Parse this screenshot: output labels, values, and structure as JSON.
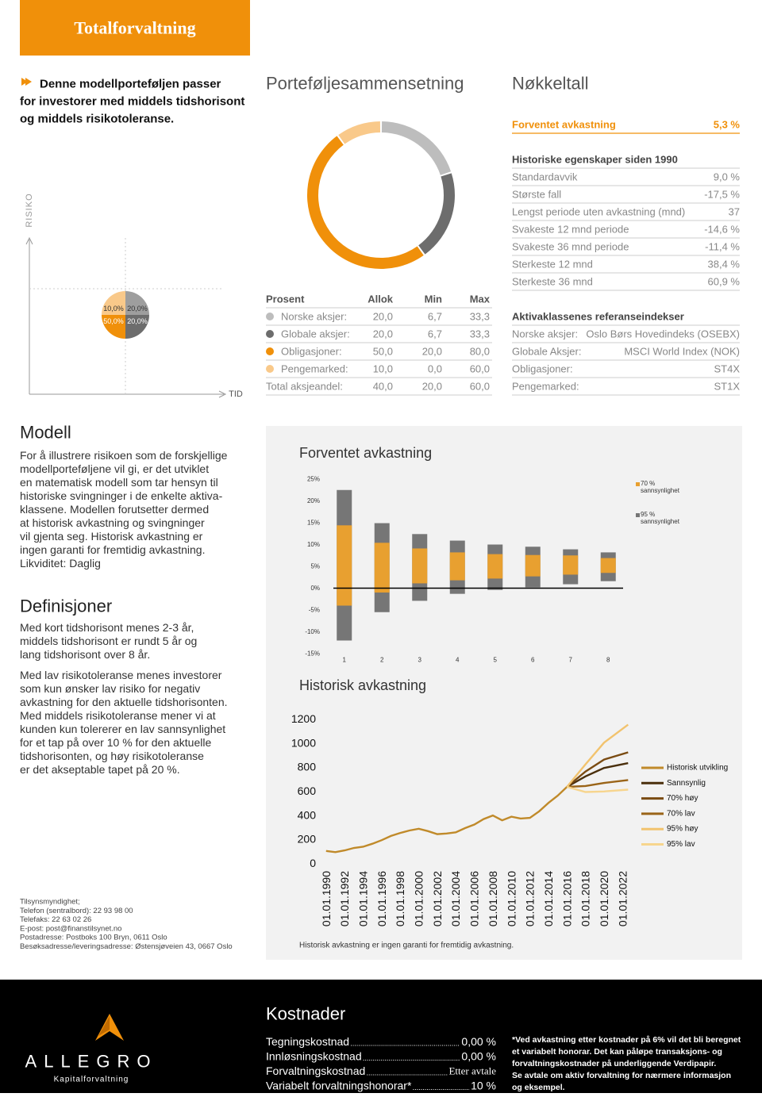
{
  "header": {
    "title": "Totalforvaltning"
  },
  "intro": {
    "lines": [
      "Denne modellporteføljen passer",
      "for investorer med middels tidshorisont",
      "og middels risikotoleranse."
    ]
  },
  "risk_chart": {
    "y_label": "RISIKO",
    "x_label": "TID",
    "pie_labels": [
      "10,0%",
      "20,0%",
      "50,0%",
      "20,0%"
    ],
    "pie_colors": [
      "#f9c98a",
      "#9e9e9e",
      "#f0900a",
      "#6d6d6d"
    ]
  },
  "composition": {
    "title": "Porteføljesammensetning",
    "donut": {
      "values": [
        20,
        20,
        50,
        10
      ],
      "colors": [
        "#bdbdbd",
        "#6d6d6d",
        "#f0900a",
        "#f9c98a"
      ]
    },
    "table": {
      "header": [
        "Prosent",
        "Allok",
        "Min",
        "Max"
      ],
      "rows": [
        [
          "Norske aksjer:",
          "20,0",
          "6,7",
          "33,3"
        ],
        [
          "Globale aksjer:",
          "20,0",
          "6,7",
          "33,3"
        ],
        [
          "Obligasjoner:",
          "50,0",
          "20,0",
          "80,0"
        ],
        [
          "Pengemarked:",
          "10,0",
          "0,0",
          "60,0"
        ],
        [
          "Total aksjeandel:",
          "40,0",
          "20,0",
          "60,0"
        ]
      ]
    }
  },
  "key_figures": {
    "title": "Nøkkeltall",
    "expected": {
      "label": "Forventet avkastning",
      "value": "5,3 %"
    },
    "historical": {
      "title": "Historiske egenskaper siden 1990",
      "rows": [
        [
          "Standardavvik",
          "9,0 %"
        ],
        [
          "Største fall",
          "-17,5 %"
        ],
        [
          "Lengst periode uten avkastning (mnd)",
          "37"
        ],
        [
          "Svakeste 12 mnd periode",
          "-14,6 %"
        ],
        [
          "Svakeste 36 mnd periode",
          "-11,4 %"
        ],
        [
          "Sterkeste 12 mnd",
          "38,4 %"
        ],
        [
          "Sterkeste 36 mnd",
          "60,9 %"
        ]
      ]
    },
    "benchmarks": {
      "title": "Aktivaklassenes referanseindekser",
      "rows": [
        [
          "Norske aksjer:",
          "Oslo Børs Hovedindeks (OSEBX)"
        ],
        [
          "Globale Aksjer:",
          "MSCI World Index (NOK)"
        ],
        [
          "Obligasjoner:",
          "ST4X"
        ],
        [
          "Pengemarked:",
          "ST1X"
        ]
      ]
    }
  },
  "modell": {
    "title": "Modell",
    "lines": [
      "For å illustrere risikoen som de forskjellige",
      "modellporteføljene vil gi, er det utviklet",
      "en matematisk modell som tar hensyn til",
      "historiske svingninger i de enkelte aktiva-",
      "klassene. Modellen forutsetter dermed",
      "at historisk avkastning og svingninger",
      "vil gjenta seg. Historisk avkastning er",
      "ingen garanti for fremtidig avkastning.",
      "Likviditet: Daglig"
    ]
  },
  "definisjoner": {
    "title": "Definisjoner",
    "paragraphs": [
      [
        "Med kort tidshorisont menes 2-3 år,",
        "middels tidshorisont er rundt 5 år og",
        "lang tidshorisont over 8 år."
      ],
      [
        "Med lav risikotoleranse menes investorer",
        "som kun ønsker lav risiko for negativ",
        "avkastning for den aktuelle tidshorisonten.",
        "Med middels risikotoleranse mener vi at",
        "kunden kun tolererer en lav sannsynlighet",
        "for et tap på over 10 % for den aktuelle",
        "tidshorisonten, og høy risikotoleranse",
        "er det akseptable tapet på 20 %."
      ]
    ]
  },
  "contact": {
    "lines": [
      "Tilsynsmyndighet;",
      "Telefon (sentralbord): 22 93 98 00",
      "Telefaks: 22 63 02 26",
      "E-post: post@finanstilsynet.no",
      "Postadresse: Postboks 100 Bryn, 0611 Oslo",
      "Besøksadresse/leveringsadresse: Østensjøveien 43, 0667 Oslo"
    ]
  },
  "chart_data": [
    {
      "type": "range_bar",
      "title": "Forventet avkastning",
      "categories": [
        "1",
        "2",
        "3",
        "4",
        "5",
        "6",
        "7",
        "8"
      ],
      "ylim": [
        -15,
        25
      ],
      "yticks": [
        {
          "value": -15,
          "label": "-15%"
        },
        {
          "value": -10,
          "label": "-10%"
        },
        {
          "value": -5,
          "label": "-5%"
        },
        {
          "value": 0,
          "label": "0%"
        },
        {
          "value": 5,
          "label": "5%"
        },
        {
          "value": 10,
          "label": "10%"
        },
        {
          "value": 15,
          "label": "15%"
        },
        {
          "value": 20,
          "label": "20%"
        },
        {
          "value": 25,
          "label": "25%"
        }
      ],
      "series": [
        {
          "name": "70 % sannsynlighet",
          "color": "#e8a030",
          "low": [
            -4,
            -1,
            1.1,
            1.8,
            2.2,
            2.7,
            3.1,
            3.5
          ],
          "high": [
            14.4,
            10.4,
            9.1,
            8.2,
            7.8,
            7.6,
            7.5,
            6.9
          ]
        },
        {
          "name": "95 % sannsynlighet",
          "color": "#767676",
          "low": [
            -12,
            -5.5,
            -2.9,
            -1.3,
            -0.4,
            0.2,
            0.9,
            1.6
          ],
          "high": [
            22.5,
            14.9,
            12.4,
            10.9,
            10,
            9.5,
            8.9,
            8.2
          ]
        }
      ]
    },
    {
      "type": "line",
      "title": "Historisk avkastning",
      "xlim": [
        1989.5,
        2023
      ],
      "xticks": [
        {
          "value": 1990,
          "label": "01.01.1990"
        },
        {
          "value": 1992,
          "label": "01.01.1992"
        },
        {
          "value": 1994,
          "label": "01.01.1994"
        },
        {
          "value": 1996,
          "label": "01.01.1996"
        },
        {
          "value": 1998,
          "label": "01.01.1998"
        },
        {
          "value": 2000,
          "label": "01.01.2000"
        },
        {
          "value": 2002,
          "label": "01.01.2002"
        },
        {
          "value": 2004,
          "label": "01.01.2004"
        },
        {
          "value": 2006,
          "label": "01.01.2006"
        },
        {
          "value": 2008,
          "label": "01.01.2008"
        },
        {
          "value": 2010,
          "label": "01.01.2010"
        },
        {
          "value": 2012,
          "label": "01.01.2012"
        },
        {
          "value": 2014,
          "label": "01.01.2014"
        },
        {
          "value": 2016,
          "label": "01.01.2016"
        },
        {
          "value": 2018,
          "label": "01.01.2018"
        },
        {
          "value": 2020,
          "label": "01.01.2020"
        },
        {
          "value": 2022,
          "label": "01.01.2022"
        }
      ],
      "ylim": [
        0,
        1200
      ],
      "yticks": [
        0,
        200,
        400,
        600,
        800,
        1000,
        1200
      ],
      "series": [
        {
          "name": "Historisk utvikling",
          "color": "#c08a2a",
          "x": [
            1990,
            1991,
            1992,
            1993,
            1994,
            1995,
            1996,
            1997,
            1998,
            1999,
            2000,
            2001,
            2002,
            2003,
            2004,
            2005,
            2006,
            2007,
            2008,
            2009,
            2010,
            2011,
            2012,
            2013,
            2014,
            2015,
            2016
          ],
          "values": [
            100,
            90,
            105,
            125,
            135,
            160,
            190,
            225,
            250,
            270,
            285,
            265,
            240,
            245,
            255,
            290,
            320,
            365,
            395,
            355,
            385,
            370,
            375,
            430,
            500,
            560,
            633
          ]
        },
        {
          "name": "Sannsynlig",
          "color": "#4a2f0c",
          "x": [
            2016,
            2018,
            2020,
            2022.6
          ],
          "values": [
            633,
            720,
            790,
            830
          ]
        },
        {
          "name": "70% høy",
          "color": "#7a4b12",
          "x": [
            2016,
            2018,
            2020,
            2022.6
          ],
          "values": [
            633,
            760,
            860,
            920
          ]
        },
        {
          "name": "70% lav",
          "color": "#9a6418",
          "x": [
            2016,
            2018,
            2020,
            2022.6
          ],
          "values": [
            633,
            640,
            665,
            690
          ]
        },
        {
          "name": "95% høy",
          "color": "#f2c36e",
          "x": [
            2016,
            2018,
            2020,
            2022.6
          ],
          "values": [
            633,
            820,
            1000,
            1150
          ]
        },
        {
          "name": "95% lav",
          "color": "#f7d58e",
          "x": [
            2016,
            2018,
            2020,
            2022.6
          ],
          "values": [
            633,
            590,
            595,
            610
          ]
        }
      ],
      "note": "Historisk avkastning er ingen garanti for fremtidig avkastning."
    }
  ],
  "footer": {
    "logo": "ALLEGRO",
    "logo_sub": "Kapitalforvaltning",
    "costs": {
      "title": "Kostnader",
      "rows": [
        [
          "Tegningskostnad",
          "0,00 %"
        ],
        [
          "Innløsningskostnad",
          "0,00 %"
        ],
        [
          "Forvaltningskostnad",
          "Etter avtale"
        ],
        [
          "Variabelt forvaltningshonorar*",
          "10 %"
        ]
      ]
    },
    "note": {
      "lines": [
        "*Ved avkastning etter kostnader på 6% vil det bli beregnet",
        "et variabelt honorar. Det kan påløpe transaksjons- og",
        "forvaltningskostnader på underliggende Verdipapir.",
        "Se avtale om aktiv forvaltning for nærmere informasjon",
        "og eksempel."
      ]
    }
  }
}
